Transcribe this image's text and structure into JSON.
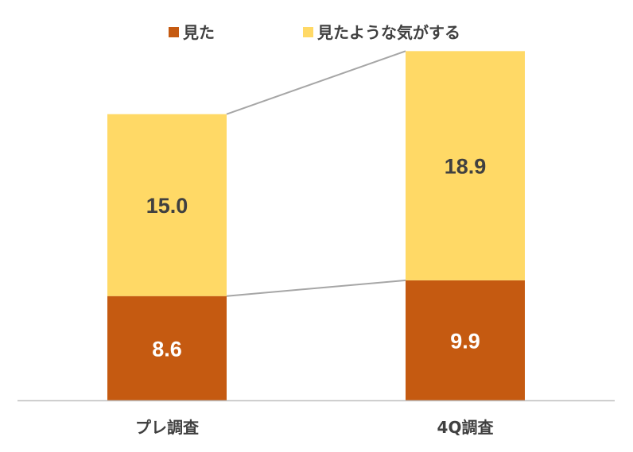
{
  "chart_data": {
    "type": "bar",
    "stacked": true,
    "categories": [
      "プレ調査",
      "4Q調査"
    ],
    "series": [
      {
        "name": "見た",
        "values": [
          8.6,
          9.9
        ],
        "color": "#C55A11",
        "label_color": "#FFFFFF"
      },
      {
        "name": "見たような気がする",
        "values": [
          15.0,
          18.9
        ],
        "color": "#FFD966",
        "label_color": "#404040"
      }
    ],
    "ylim": [
      0,
      30
    ],
    "grid": false,
    "legend": "top",
    "series_lines": true,
    "axis_color": "#BFBFBF",
    "series_line_color": "#A6A6A6"
  }
}
